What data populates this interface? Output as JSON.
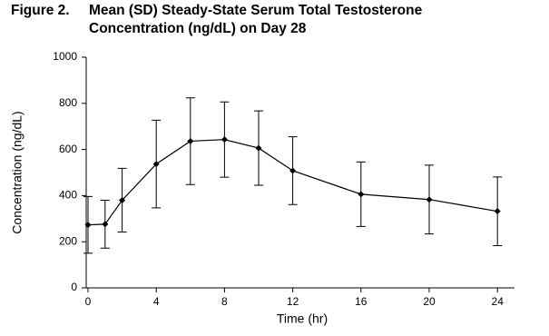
{
  "chart_data": {
    "type": "line",
    "figure_label": "Figure 2.",
    "title": "Mean (SD) Steady-State Serum Total Testosterone Concentration (ng/dL) on Day 28",
    "x_label": "Time (hr)",
    "y_label": "Concentration (ng/dL)",
    "x": [
      0,
      1,
      2,
      4,
      6,
      8,
      10,
      12,
      16,
      20,
      24
    ],
    "series": [
      {
        "color": "#000000",
        "values": [
          273,
          276,
          380,
          537,
          636,
          643,
          606,
          508,
          406,
          383,
          332
        ],
        "errors": [
          123,
          104,
          138,
          190,
          188,
          163,
          161,
          147,
          140,
          149,
          149
        ]
      }
    ],
    "xlim": [
      0,
      25
    ],
    "xticks": [
      0,
      4,
      8,
      12,
      16,
      20,
      24
    ],
    "ylim": [
      0,
      1000
    ],
    "yticks": [
      0,
      200,
      400,
      600,
      800,
      1000
    ]
  }
}
